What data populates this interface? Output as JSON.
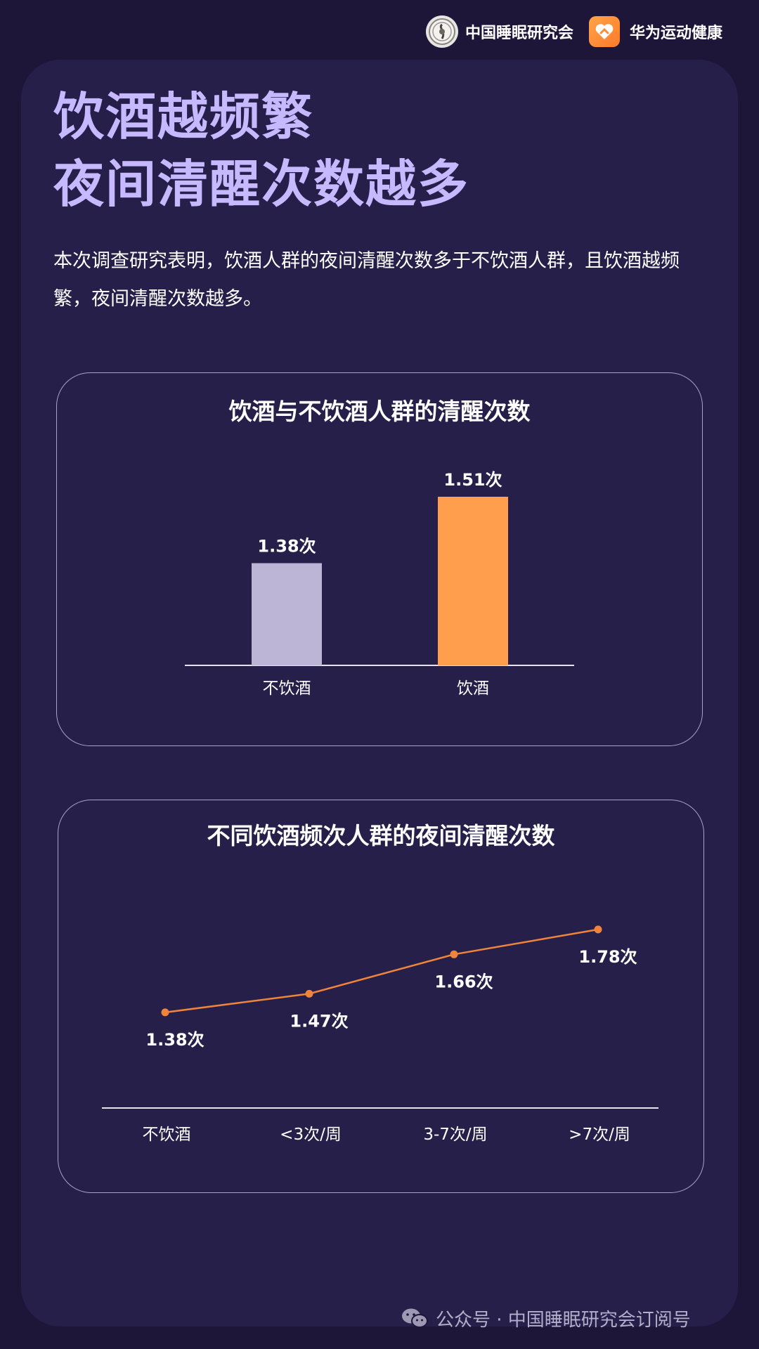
{
  "header": {
    "brand1": {
      "name": "中国睡眠研究会",
      "icon": "seal-logo-icon"
    },
    "brand2": {
      "name": "华为运动健康",
      "icon": "huawei-health-logo-icon"
    }
  },
  "main": {
    "title_lines": [
      "饮酒越频繁",
      "夜间清醒次数越多"
    ],
    "intro": "本次调查研究表明，饮酒人群的夜间清醒次数多于不饮酒人群，且饮酒越频繁，夜间清醒次数越多。"
  },
  "chart_data": [
    {
      "type": "bar",
      "title": "饮酒与不饮酒人群的清醒次数",
      "categories": [
        "不饮酒",
        "饮酒"
      ],
      "values": [
        1.38,
        1.51
      ],
      "value_labels": [
        "1.38次",
        "1.51次"
      ],
      "colors": [
        "#bdb5d6",
        "#ff9e4c"
      ],
      "ylim": [
        1.18,
        1.51
      ],
      "grid": false
    },
    {
      "type": "line",
      "title": "不同饮酒频次人群的夜间清醒次数",
      "categories": [
        "不饮酒",
        "<3次/周",
        "3-7次/周",
        ">7次/周"
      ],
      "values": [
        1.38,
        1.47,
        1.66,
        1.78
      ],
      "value_labels": [
        "1.38次",
        "1.47次",
        "1.66次",
        "1.78次"
      ],
      "color": "#f0843a",
      "ylim": [
        1.2,
        1.8
      ],
      "grid": false
    }
  ],
  "footer": {
    "source": "公众号 · 中国睡眠研究会订阅号",
    "icon": "wechat-icon"
  }
}
